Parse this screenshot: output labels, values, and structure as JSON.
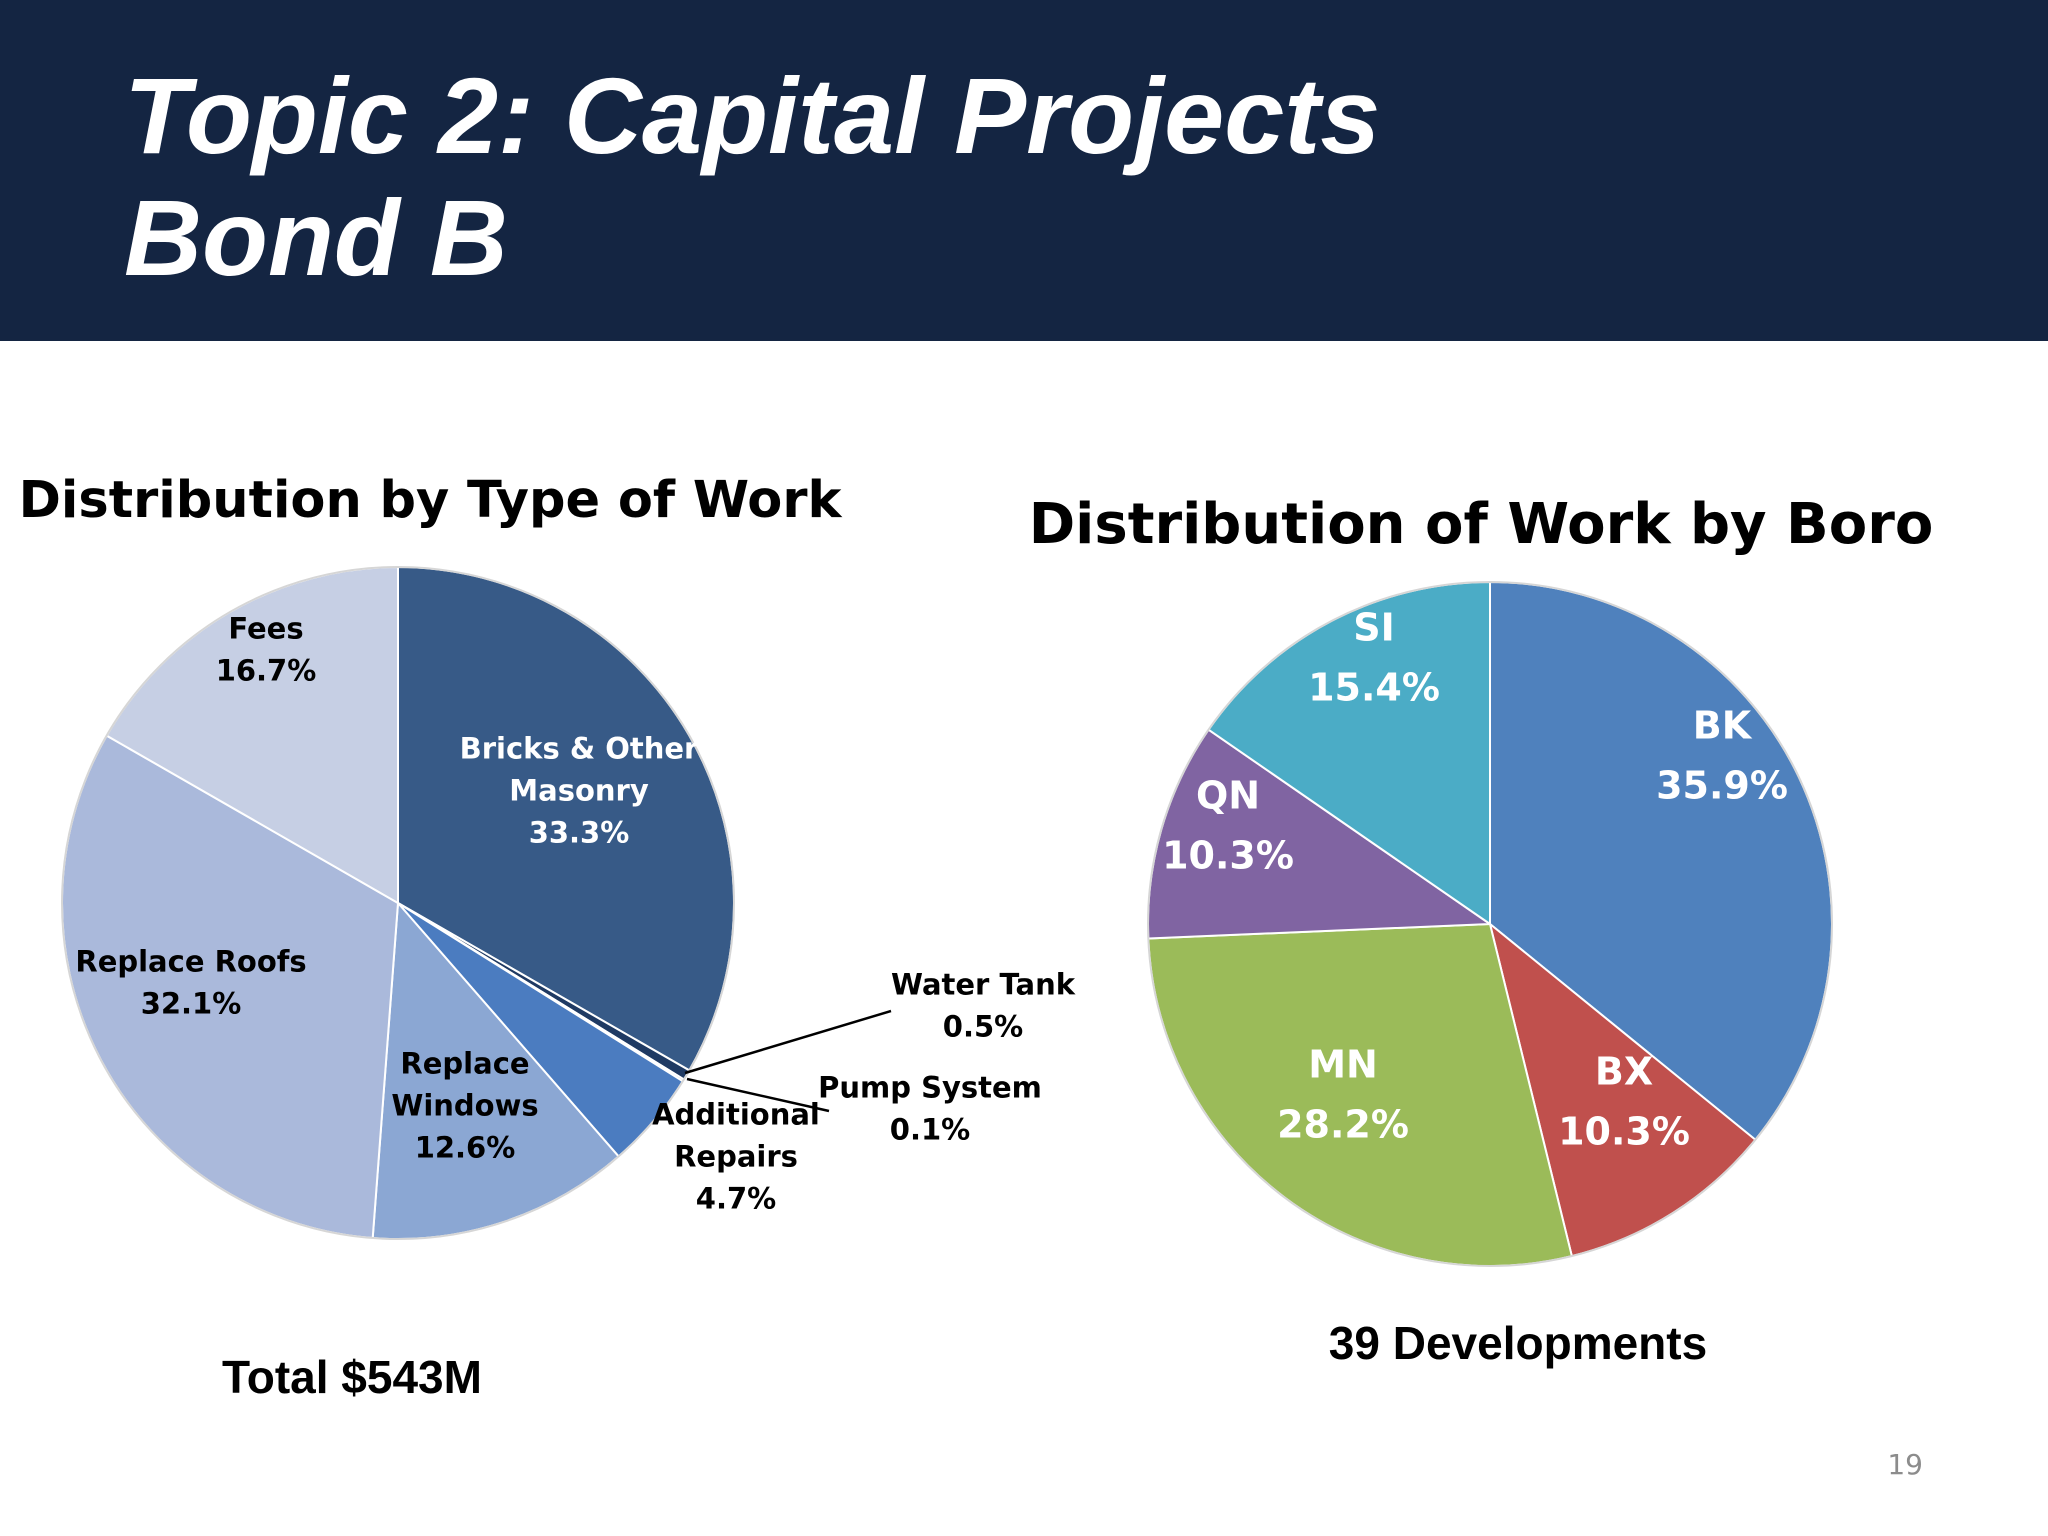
{
  "header": {
    "title_line1": "Topic 2: Capital Projects",
    "title_line2": "Bond B",
    "background_color": "#142542"
  },
  "page_number": "19",
  "chart_data": [
    {
      "type": "pie",
      "title": "Distribution by Type of Work",
      "footer": "Total $543M",
      "slices": [
        {
          "name": "Bricks & Other Masonry",
          "label_lines": [
            "Bricks & Other",
            "Masonry"
          ],
          "value": 33.3,
          "value_label": "33.3%",
          "color": "#375a87"
        },
        {
          "name": "Water Tank",
          "label_lines": [
            "Water Tank"
          ],
          "value": 0.5,
          "value_label": "0.5%",
          "color": "#1f3a63"
        },
        {
          "name": "Pump System",
          "label_lines": [
            "Pump System"
          ],
          "value": 0.1,
          "value_label": "0.1%",
          "color": "#29446e"
        },
        {
          "name": "Additional Repairs",
          "label_lines": [
            "Additional",
            "Repairs"
          ],
          "value": 4.7,
          "value_label": "4.7%",
          "color": "#4b7cc0"
        },
        {
          "name": "Replace Windows",
          "label_lines": [
            "Replace",
            "Windows"
          ],
          "value": 12.6,
          "value_label": "12.6%",
          "color": "#8ba7d3"
        },
        {
          "name": "Replace Roofs",
          "label_lines": [
            "Replace Roofs"
          ],
          "value": 32.1,
          "value_label": "32.1%",
          "color": "#aab9db"
        },
        {
          "name": "Fees",
          "label_lines": [
            "Fees"
          ],
          "value": 16.7,
          "value_label": "16.7%",
          "color": "#c6cfe4"
        }
      ]
    },
    {
      "type": "pie",
      "title": "Distribution of Work by Boro",
      "footer": "39 Developments",
      "slices": [
        {
          "name": "BK",
          "label_lines": [
            "BK"
          ],
          "value": 35.9,
          "value_label": "35.9%",
          "color": "#4f81bd"
        },
        {
          "name": "BX",
          "label_lines": [
            "BX"
          ],
          "value": 10.3,
          "value_label": "10.3%",
          "color": "#c0504d"
        },
        {
          "name": "MN",
          "label_lines": [
            "MN"
          ],
          "value": 28.2,
          "value_label": "28.2%",
          "color": "#9bbb59"
        },
        {
          "name": "QN",
          "label_lines": [
            "QN"
          ],
          "value": 10.3,
          "value_label": "10.3%",
          "color": "#8064a2"
        },
        {
          "name": "SI",
          "label_lines": [
            "SI"
          ],
          "value": 15.4,
          "value_label": "15.4%",
          "color": "#4bacc6"
        }
      ]
    }
  ]
}
